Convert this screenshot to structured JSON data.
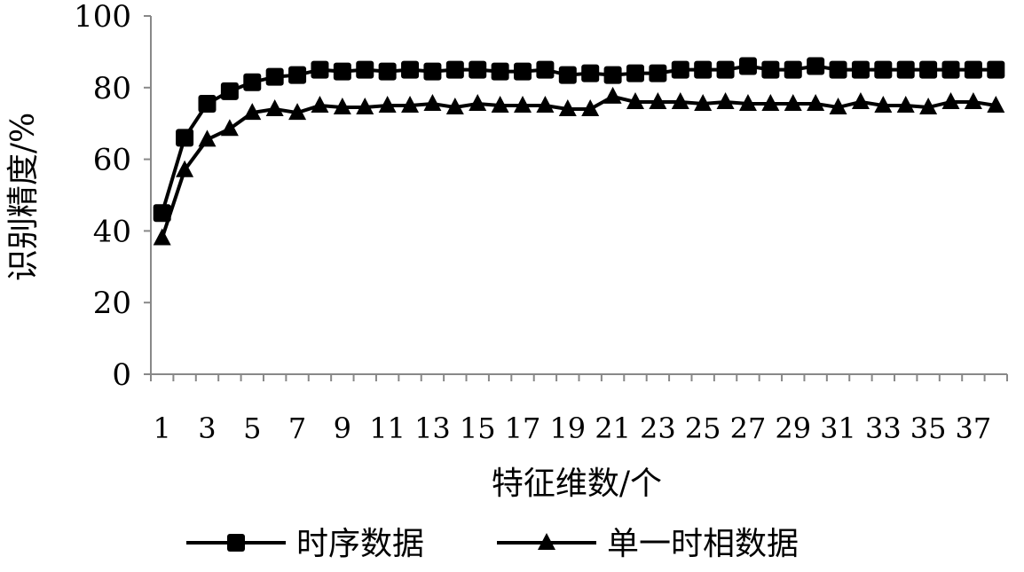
{
  "chart_data": {
    "type": "line",
    "title": "",
    "xlabel": "特征维数/个",
    "ylabel": "识别精度/%",
    "ylim": [
      0,
      100
    ],
    "yticks": [
      0,
      20,
      40,
      60,
      80,
      100
    ],
    "x": [
      1,
      2,
      3,
      4,
      5,
      6,
      7,
      8,
      9,
      10,
      11,
      12,
      13,
      14,
      15,
      16,
      17,
      18,
      19,
      20,
      21,
      22,
      23,
      24,
      25,
      26,
      27,
      28,
      29,
      30,
      31,
      32,
      33,
      34,
      35,
      36,
      37,
      38
    ],
    "xtick_labels": [
      "1",
      "3",
      "5",
      "7",
      "9",
      "11",
      "13",
      "15",
      "17",
      "19",
      "21",
      "23",
      "25",
      "27",
      "29",
      "31",
      "33",
      "35",
      "37"
    ],
    "grid": false,
    "legend_position": "bottom",
    "series": [
      {
        "name": "时序数据",
        "marker": "square",
        "color": "#000000",
        "values": [
          45,
          66,
          75.5,
          79,
          81.5,
          83,
          83.5,
          85,
          84.5,
          85,
          84.5,
          85,
          84.5,
          85,
          85,
          84.5,
          84.5,
          85,
          83.5,
          84,
          83.5,
          84,
          84,
          85,
          85,
          85,
          86,
          85,
          85,
          86,
          85,
          85,
          85,
          85,
          85,
          85,
          85,
          85
        ]
      },
      {
        "name": "单一时相数据",
        "marker": "triangle",
        "color": "#000000",
        "values": [
          38,
          57,
          65.5,
          68.5,
          73,
          74,
          73,
          75,
          74.5,
          74.5,
          75,
          75,
          75.5,
          74.5,
          75.5,
          75,
          75,
          75,
          74,
          74,
          77.5,
          76,
          76,
          76,
          75.5,
          76,
          75.5,
          75.5,
          75.5,
          75.5,
          74.5,
          76,
          75,
          75,
          74.5,
          76,
          76,
          75
        ]
      }
    ]
  }
}
